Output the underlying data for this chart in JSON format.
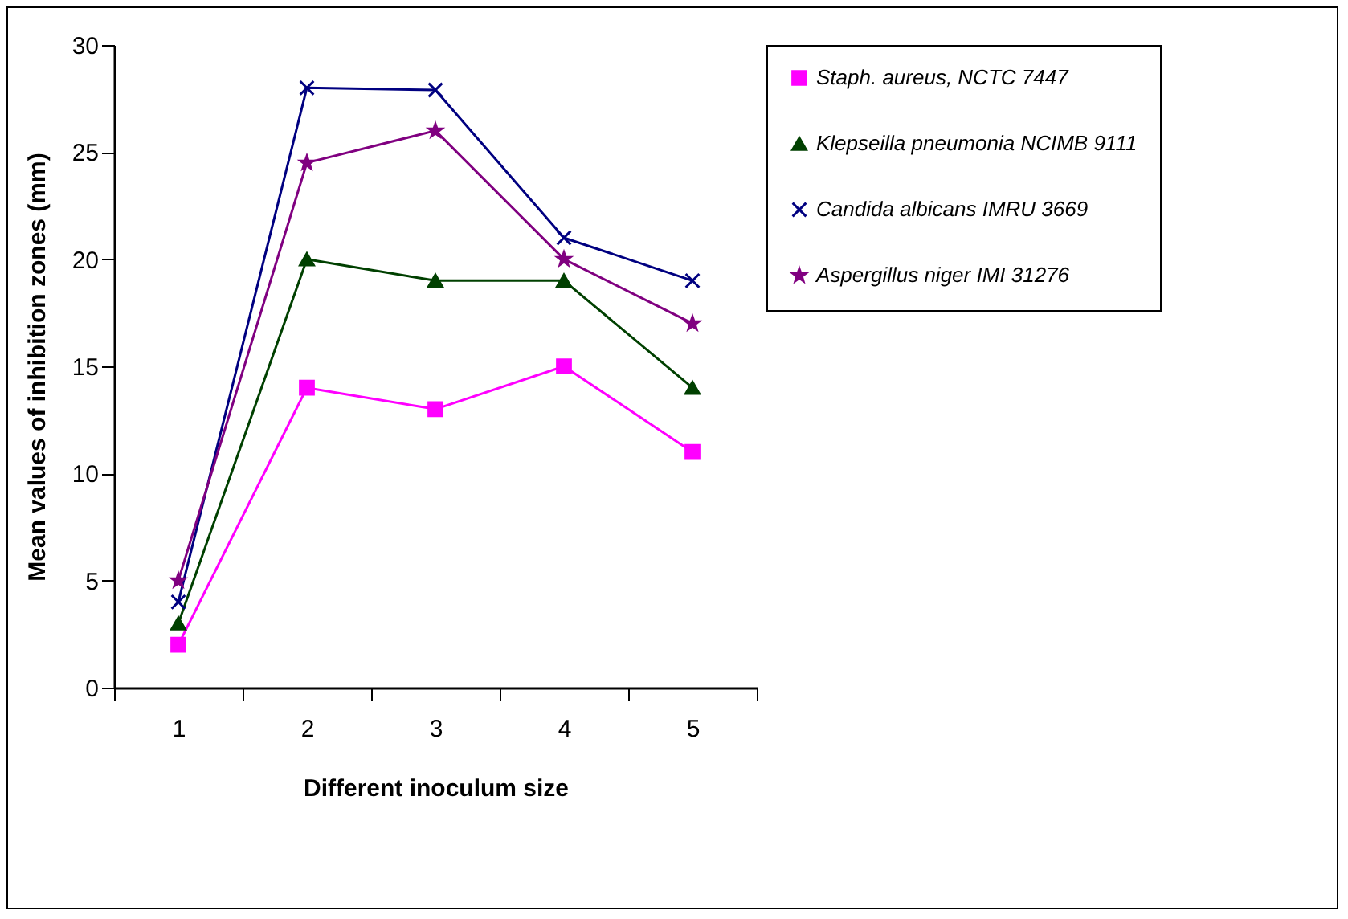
{
  "chart_data": {
    "type": "line",
    "xlabel": "Different inoculum size",
    "ylabel": "Mean values of inhibition zones (mm)",
    "categories": [
      "1",
      "2",
      "3",
      "4",
      "5"
    ],
    "series": [
      {
        "name": "Staph. aureus, NCTC 7447",
        "color": "#ff00ff",
        "marker": "square",
        "values": [
          2,
          14,
          13,
          15,
          11
        ]
      },
      {
        "name": "Klepseilla pneumonia NCIMB 9111",
        "color": "#004000",
        "marker": "triangle",
        "values": [
          3,
          20,
          19,
          19,
          14
        ]
      },
      {
        "name": "Candida albicans IMRU 3669",
        "color": "#000080",
        "marker": "cross",
        "values": [
          4,
          28,
          27.9,
          21,
          19
        ]
      },
      {
        "name": "Aspergillus niger IMI 31276",
        "color": "#800080",
        "marker": "star",
        "values": [
          5,
          24.5,
          26,
          20,
          17
        ]
      }
    ],
    "ylim": [
      0,
      30
    ],
    "yticks": [
      0,
      5,
      10,
      15,
      20,
      25,
      30
    ],
    "grid": false,
    "legend": "right",
    "line_style": "solid"
  }
}
